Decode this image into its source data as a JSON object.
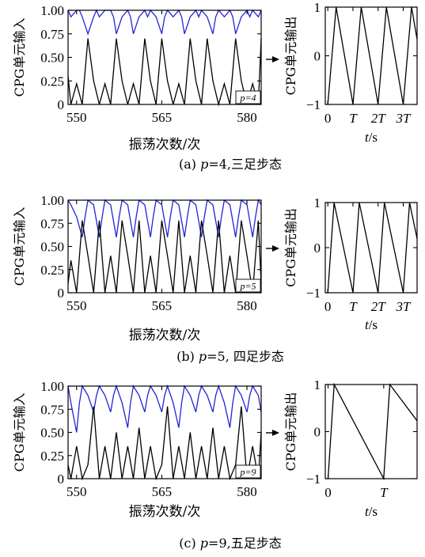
{
  "colors": {
    "input_high": "#2424d6",
    "input_low": "#000000",
    "output": "#000000",
    "axis": "#000000"
  },
  "chart_data": [
    {
      "type": "line",
      "panel": "a",
      "caption": "(a) p=4,三足步态",
      "caption_prefix": "(a) ",
      "caption_var": "p",
      "caption_rest": "=4,三足步态",
      "period_label": "p=4",
      "input": {
        "ylabel": "CPG单元输入",
        "xlabel": "振荡次数/次",
        "xlim": [
          548.5,
          582.5
        ],
        "ylim": [
          0,
          1
        ],
        "xticks": [
          "550",
          "565",
          "580"
        ],
        "xtick_values": [
          550,
          565,
          580
        ],
        "yticks": [
          "0",
          "0.25",
          "0.50",
          "0.75",
          "1.00"
        ],
        "ytick_values": [
          0,
          0.25,
          0.5,
          0.75,
          1.0
        ],
        "series": [
          {
            "role": "upper",
            "x": [
              548.5,
              549,
              550,
              550.5,
              551,
              552,
              553,
              553.5,
              554,
              555,
              556,
              556.5,
              557,
              558,
              559,
              559.5,
              560,
              561,
              562,
              562.5,
              563,
              564,
              565,
              565.5,
              566,
              567,
              568,
              568.5,
              569,
              570,
              571,
              571.5,
              572,
              573,
              574,
              574.5,
              575,
              576,
              577,
              577.5,
              578,
              579,
              580,
              580.5,
              581,
              582,
              582.5
            ],
            "y": [
              1.0,
              0.93,
              1.0,
              1.0,
              0.93,
              0.75,
              0.93,
              1.0,
              0.93,
              1.0,
              1.0,
              0.93,
              0.75,
              0.93,
              1.0,
              0.93,
              0.75,
              0.93,
              1.0,
              0.93,
              1.0,
              0.93,
              0.75,
              0.93,
              1.0,
              0.93,
              1.0,
              0.93,
              0.75,
              0.93,
              1.0,
              0.93,
              1.0,
              0.93,
              0.75,
              0.93,
              1.0,
              0.93,
              1.0,
              0.93,
              0.75,
              0.93,
              1.0,
              0.93,
              1.0,
              0.93,
              1.0
            ]
          },
          {
            "role": "lower",
            "x": [
              548.5,
              549,
              550,
              551,
              552,
              553,
              554,
              555,
              556,
              557,
              558,
              559,
              560,
              561,
              562,
              563,
              564,
              565,
              566,
              567,
              568,
              569,
              570,
              571,
              572,
              573,
              574,
              575,
              576,
              577,
              578,
              579,
              580,
              581,
              582,
              582.5
            ],
            "y": [
              0.3,
              0.0,
              0.22,
              0.0,
              0.7,
              0.25,
              0.0,
              0.22,
              0.0,
              0.7,
              0.25,
              0.0,
              0.22,
              0.0,
              0.7,
              0.25,
              0.0,
              0.7,
              0.25,
              0.0,
              0.22,
              0.0,
              0.7,
              0.25,
              0.0,
              0.7,
              0.25,
              0.0,
              0.22,
              0.0,
              0.7,
              0.25,
              0.0,
              0.22,
              0.0,
              0.7
            ]
          }
        ]
      },
      "output": {
        "ylabel": "CPG单元输出",
        "xlabel": "t/s",
        "xlabel_var": "t",
        "xlabel_unit": "/s",
        "ylim": [
          -1,
          1
        ],
        "yticks": [
          "−1",
          "0",
          "1"
        ],
        "ytick_values": [
          -1,
          0,
          1
        ],
        "xticks": [
          "0",
          "T",
          "2T",
          "3T"
        ],
        "xtick_values": [
          0,
          1,
          2,
          3
        ],
        "xlim": [
          -0.1,
          3.55
        ],
        "series": [
          {
            "x": [
              0,
              0.33,
              1,
              1.33,
              2,
              2.33,
              3,
              3.33,
              3.55
            ],
            "y": [
              -1,
              1,
              -1,
              1,
              -1,
              1,
              -1,
              1,
              0.34
            ]
          }
        ]
      }
    },
    {
      "type": "line",
      "panel": "b",
      "caption": "(b) p=5, 四足步态",
      "caption_prefix": "(b) ",
      "caption_var": "p",
      "caption_rest": "=5, 四足步态",
      "period_label": "p=5",
      "input": {
        "ylabel": "CPG单元输入",
        "xlabel": "振荡次数/次",
        "xlim": [
          548.5,
          582.5
        ],
        "ylim": [
          0,
          1
        ],
        "xticks": [
          "550",
          "565",
          "580"
        ],
        "xtick_values": [
          550,
          565,
          580
        ],
        "yticks": [
          "0",
          "0.25",
          "0.50",
          "0.75",
          "1.00"
        ],
        "ytick_values": [
          0,
          0.25,
          0.5,
          0.75,
          1.0
        ],
        "series": [
          {
            "role": "upper",
            "x": [
              548.5,
              549,
              550,
              551,
              551.5,
              552,
              553,
              554,
              554.5,
              555,
              556,
              557,
              557.5,
              558,
              559,
              560,
              560.5,
              561,
              562,
              563,
              563.5,
              564,
              565,
              566,
              566.5,
              567,
              568,
              569,
              569.5,
              570,
              571,
              572,
              572.5,
              573,
              574,
              575,
              575.5,
              576,
              577,
              578,
              578.5,
              579,
              580,
              581,
              581.5,
              582,
              582.5
            ],
            "y": [
              1.0,
              0.95,
              0.82,
              0.6,
              0.82,
              1.0,
              0.95,
              0.6,
              0.82,
              1.0,
              0.95,
              0.6,
              0.82,
              1.0,
              0.95,
              0.6,
              0.82,
              1.0,
              0.95,
              0.6,
              0.82,
              1.0,
              0.95,
              0.6,
              0.82,
              1.0,
              0.95,
              0.6,
              0.82,
              1.0,
              0.95,
              0.6,
              0.82,
              1.0,
              0.95,
              0.6,
              0.82,
              1.0,
              0.95,
              0.6,
              0.82,
              1.0,
              0.95,
              0.6,
              0.82,
              1.0,
              0.95
            ]
          },
          {
            "role": "lower",
            "x": [
              548.5,
              549,
              550,
              551,
              552,
              553,
              554,
              555,
              556,
              557,
              558,
              559,
              560,
              561,
              562,
              563,
              564,
              565,
              566,
              567,
              568,
              569,
              570,
              571,
              572,
              573,
              574,
              575,
              576,
              577,
              578,
              579,
              580,
              581,
              582,
              582.5
            ],
            "y": [
              0.1,
              0.35,
              0.0,
              0.78,
              0.4,
              0.0,
              0.78,
              0.0,
              0.4,
              0.0,
              0.78,
              0.4,
              0.0,
              0.78,
              0.0,
              0.4,
              0.0,
              0.78,
              0.4,
              0.0,
              0.78,
              0.0,
              0.4,
              0.0,
              0.78,
              0.4,
              0.0,
              0.78,
              0.0,
              0.4,
              0.0,
              0.78,
              0.4,
              0.0,
              0.78,
              0.1
            ]
          }
        ]
      },
      "output": {
        "ylabel": "CPG单元输出",
        "xlabel": "t/s",
        "xlabel_var": "t",
        "xlabel_unit": "/s",
        "ylim": [
          -1,
          1
        ],
        "yticks": [
          "−1",
          "0",
          "1"
        ],
        "ytick_values": [
          -1,
          0,
          1
        ],
        "xticks": [
          "0",
          "T",
          "2T",
          "3T"
        ],
        "xtick_values": [
          0,
          1,
          2,
          3
        ],
        "xlim": [
          -0.1,
          3.55
        ],
        "series": [
          {
            "x": [
              0,
              0.25,
              1,
              1.25,
              2,
              2.25,
              3,
              3.25,
              3.55
            ],
            "y": [
              -1,
              1,
              -1,
              1,
              -1,
              1,
              -1,
              1,
              0.2
            ]
          }
        ]
      }
    },
    {
      "type": "line",
      "panel": "c",
      "caption": "(c) p=9,五足步态",
      "caption_prefix": "(c) ",
      "caption_var": "p",
      "caption_rest": "=9,五足步态",
      "period_label": "p=9",
      "input": {
        "ylabel": "CPG单元输入",
        "xlabel": "振荡次数/次",
        "xlim": [
          548.5,
          582.5
        ],
        "ylim": [
          0,
          1
        ],
        "xticks": [
          "550",
          "565",
          "580"
        ],
        "xtick_values": [
          550,
          565,
          580
        ],
        "yticks": [
          "0",
          "0.25",
          "0.50",
          "0.75",
          "1.00"
        ],
        "ytick_values": [
          0,
          0.25,
          0.5,
          0.75,
          1.0
        ],
        "series": [
          {
            "role": "upper",
            "x": [
              548.5,
              549,
              550,
              550.5,
              551,
              552,
              553,
              553.5,
              554,
              555,
              556,
              556.5,
              557,
              558,
              559,
              559.5,
              560,
              561,
              562,
              562.5,
              563,
              564,
              565,
              565.5,
              566,
              567,
              568,
              568.5,
              569,
              570,
              571,
              571.5,
              572,
              573,
              574,
              574.5,
              575,
              576,
              577,
              577.5,
              578,
              579,
              580,
              580.5,
              581,
              582,
              582.5
            ],
            "y": [
              1.0,
              0.82,
              0.5,
              0.82,
              1.0,
              0.9,
              0.72,
              0.9,
              1.0,
              0.9,
              0.72,
              0.9,
              1.0,
              0.82,
              0.55,
              0.82,
              1.0,
              0.9,
              0.72,
              0.9,
              1.0,
              0.9,
              0.72,
              0.9,
              1.0,
              0.82,
              0.55,
              0.82,
              1.0,
              0.9,
              0.72,
              0.9,
              1.0,
              0.9,
              0.72,
              0.9,
              1.0,
              0.82,
              0.55,
              0.82,
              1.0,
              0.9,
              0.72,
              0.9,
              1.0,
              0.9,
              0.72
            ]
          },
          {
            "role": "lower",
            "x": [
              548.5,
              549,
              550,
              551,
              552,
              553,
              554,
              555,
              556,
              557,
              558,
              559,
              560,
              561,
              562,
              563,
              564,
              565,
              566,
              567,
              568,
              569,
              570,
              571,
              572,
              573,
              574,
              575,
              576,
              577,
              578,
              579,
              580,
              581,
              582,
              582.5
            ],
            "y": [
              0.15,
              0.0,
              0.35,
              0.0,
              0.15,
              0.78,
              0.0,
              0.35,
              0.0,
              0.5,
              0.0,
              0.35,
              0.0,
              0.55,
              0.0,
              0.35,
              0.0,
              0.15,
              0.78,
              0.0,
              0.35,
              0.0,
              0.5,
              0.0,
              0.35,
              0.0,
              0.55,
              0.0,
              0.35,
              0.0,
              0.15,
              0.78,
              0.0,
              0.35,
              0.0,
              0.5
            ]
          }
        ]
      },
      "output": {
        "ylabel": "CPG单元输出",
        "xlabel": "t/s",
        "xlabel_var": "t",
        "xlabel_unit": "/s",
        "ylim": [
          -1,
          1
        ],
        "yticks": [
          "−1",
          "0",
          "1"
        ],
        "ytick_values": [
          -1,
          0,
          1
        ],
        "xticks": [
          "0",
          "T"
        ],
        "xtick_values": [
          0,
          1
        ],
        "xlim": [
          -0.05,
          1.6
        ],
        "series": [
          {
            "x": [
              0,
              0.11,
              1,
              1.11,
              1.6
            ],
            "y": [
              -1,
              1,
              -1,
              1,
              0.23
            ]
          }
        ]
      }
    }
  ]
}
